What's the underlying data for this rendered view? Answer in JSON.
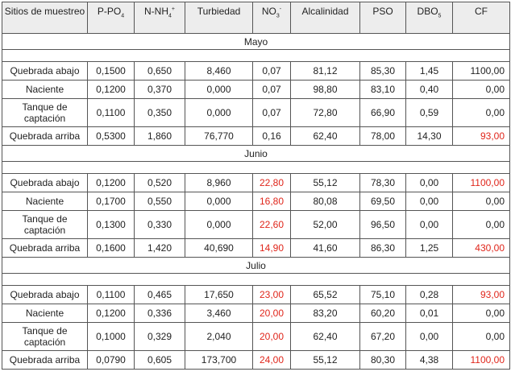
{
  "headers": {
    "sitios": "Sitios de muestreo",
    "ppo4_main": "P-PO",
    "ppo4_sub": "4",
    "nnh4_main": "N-NH",
    "nnh4_sub": "4",
    "nnh4_sup": "+",
    "turbiedad": "Turbiedad",
    "no3_main": "NO",
    "no3_sub": "3",
    "no3_sup": "-",
    "alcalinidad": "Alcalinidad",
    "pso": "PSO",
    "dbo5_main": "DBO",
    "dbo5_sub": "5",
    "cf": "CF"
  },
  "highlight_color": "#e0261b",
  "months": [
    {
      "name": "Mayo",
      "rows": [
        {
          "site": "Quebrada abajo",
          "ppo4": "0,1500",
          "nnh4": "0,650",
          "turb": "8,460",
          "no3": "0,07",
          "alc": "81,12",
          "pso": "85,30",
          "dbo5": "1,45",
          "cf": "1100,00",
          "no3_red": false,
          "cf_red": false
        },
        {
          "site": "Naciente",
          "ppo4": "0,1200",
          "nnh4": "0,370",
          "turb": "0,000",
          "no3": "0,07",
          "alc": "98,80",
          "pso": "83,10",
          "dbo5": "0,40",
          "cf": "0,00",
          "no3_red": false,
          "cf_red": false
        },
        {
          "site": "Tanque de captación",
          "ppo4": "0,1100",
          "nnh4": "0,350",
          "turb": "0,000",
          "no3": "0,07",
          "alc": "72,80",
          "pso": "66,90",
          "dbo5": "0,59",
          "cf": "0,00",
          "no3_red": false,
          "cf_red": false
        },
        {
          "site": "Quebrada arriba",
          "ppo4": "0,5300",
          "nnh4": "1,860",
          "turb": "76,770",
          "no3": "0,16",
          "alc": "62,40",
          "pso": "78,00",
          "dbo5": "14,30",
          "cf": "93,00",
          "no3_red": false,
          "cf_red": true
        }
      ]
    },
    {
      "name": "Junio",
      "rows": [
        {
          "site": "Quebrada abajo",
          "ppo4": "0,1200",
          "nnh4": "0,520",
          "turb": "8,960",
          "no3": "22,80",
          "alc": "55,12",
          "pso": "78,30",
          "dbo5": "0,00",
          "cf": "1100,00",
          "no3_red": true,
          "cf_red": true
        },
        {
          "site": "Naciente",
          "ppo4": "0,1700",
          "nnh4": "0,550",
          "turb": "0,000",
          "no3": "16,80",
          "alc": "80,08",
          "pso": "69,50",
          "dbo5": "0,00",
          "cf": "0,00",
          "no3_red": true,
          "cf_red": false
        },
        {
          "site": "Tanque de captación",
          "ppo4": "0,1300",
          "nnh4": "0,330",
          "turb": "0,000",
          "no3": "22,60",
          "alc": "52,00",
          "pso": "96,50",
          "dbo5": "0,00",
          "cf": "0,00",
          "no3_red": true,
          "cf_red": false
        },
        {
          "site": "Quebrada arriba",
          "ppo4": "0,1600",
          "nnh4": "1,420",
          "turb": "40,690",
          "no3": "14,90",
          "alc": "41,60",
          "pso": "86,30",
          "dbo5": "1,25",
          "cf": "430,00",
          "no3_red": true,
          "cf_red": true
        }
      ]
    },
    {
      "name": "Julio",
      "rows": [
        {
          "site": "Quebrada abajo",
          "ppo4": "0,1100",
          "nnh4": "0,465",
          "turb": "17,650",
          "no3": "23,00",
          "alc": "65,52",
          "pso": "75,10",
          "dbo5": "0,28",
          "cf": "93,00",
          "no3_red": true,
          "cf_red": true
        },
        {
          "site": "Naciente",
          "ppo4": "0,1200",
          "nnh4": "0,336",
          "turb": "3,460",
          "no3": "20,00",
          "alc": "83,20",
          "pso": "60,20",
          "dbo5": "0,01",
          "cf": "0,00",
          "no3_red": true,
          "cf_red": false
        },
        {
          "site": "Tanque de captación",
          "ppo4": "0,1000",
          "nnh4": "0,329",
          "turb": "2,040",
          "no3": "20,00",
          "alc": "62,40",
          "pso": "67,20",
          "dbo5": "0,00",
          "cf": "0,00",
          "no3_red": true,
          "cf_red": false
        },
        {
          "site": "Quebrada arriba",
          "ppo4": "0,0790",
          "nnh4": "0,605",
          "turb": "173,700",
          "no3": "24,00",
          "alc": "55,12",
          "pso": "80,30",
          "dbo5": "4,38",
          "cf": "1100,00",
          "no3_red": true,
          "cf_red": true
        }
      ]
    }
  ]
}
